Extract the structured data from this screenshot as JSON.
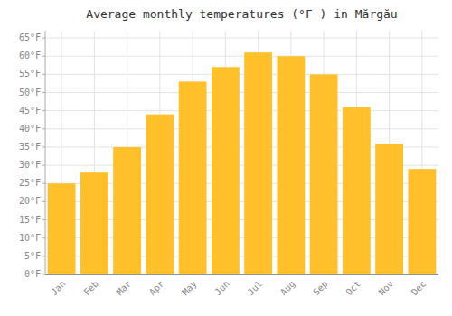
{
  "chart_data": {
    "type": "bar",
    "title": "Average monthly temperatures (°F ) in Mărgău",
    "categories": [
      "Jan",
      "Feb",
      "Mar",
      "Apr",
      "May",
      "Jun",
      "Jul",
      "Aug",
      "Sep",
      "Oct",
      "Nov",
      "Dec"
    ],
    "values": [
      25,
      28,
      35,
      44,
      53,
      57,
      61,
      60,
      55,
      46,
      36,
      29
    ],
    "color": "#FFC02A",
    "ylim": [
      0,
      67
    ],
    "yticks": [
      {
        "value": 0,
        "label": "0°F"
      },
      {
        "value": 5,
        "label": "5°F"
      },
      {
        "value": 10,
        "label": "10°F"
      },
      {
        "value": 15,
        "label": "15°F"
      },
      {
        "value": 20,
        "label": "20°F"
      },
      {
        "value": 25,
        "label": "25°F"
      },
      {
        "value": 30,
        "label": "30°F"
      },
      {
        "value": 35,
        "label": "35°F"
      },
      {
        "value": 40,
        "label": "40°F"
      },
      {
        "value": 45,
        "label": "45°F"
      },
      {
        "value": 50,
        "label": "50°F"
      },
      {
        "value": 55,
        "label": "55°F"
      },
      {
        "value": 60,
        "label": "60°F"
      },
      {
        "value": 65,
        "label": "65°F"
      }
    ],
    "grid": true
  }
}
